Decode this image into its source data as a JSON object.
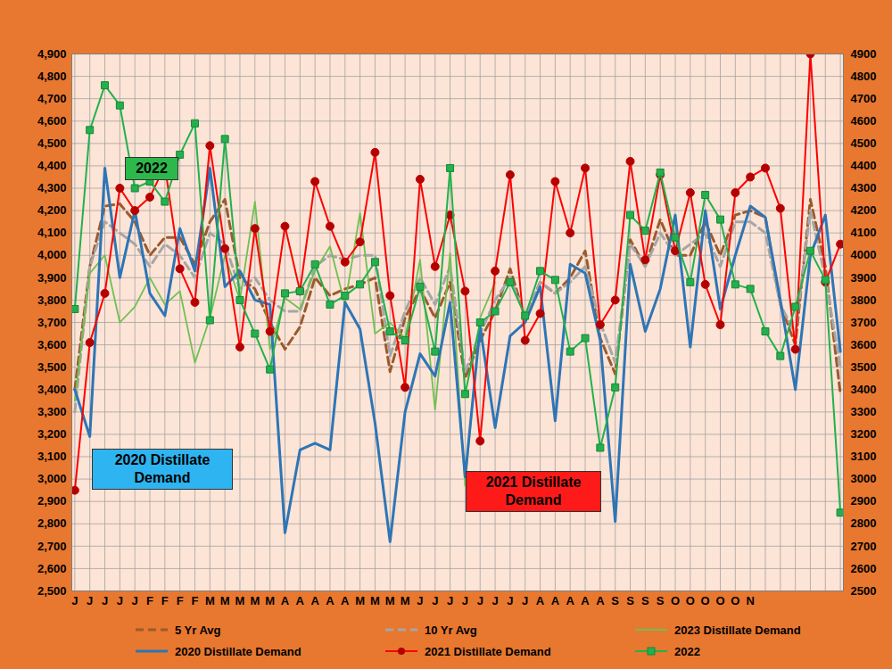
{
  "chart_data": {
    "type": "line",
    "categories": [
      "J",
      "J",
      "J",
      "J",
      "J",
      "F",
      "F",
      "F",
      "F",
      "M",
      "M",
      "M",
      "M",
      "M",
      "A",
      "A",
      "A",
      "A",
      "A",
      "M",
      "M",
      "M",
      "M",
      "J",
      "J",
      "J",
      "J",
      "J",
      "J",
      "J",
      "J",
      "A",
      "A",
      "A",
      "A",
      "A",
      "S",
      "S",
      "S",
      "S",
      "O",
      "O",
      "O",
      "O",
      "O",
      "N",
      null,
      null,
      null,
      null,
      null,
      null
    ],
    "ylim": [
      2500,
      4900
    ],
    "yticks": [
      {
        "value": 2500,
        "label": "2,500"
      },
      {
        "value": 2600,
        "label": "2,600"
      },
      {
        "value": 2700,
        "label": "2,700"
      },
      {
        "value": 2800,
        "label": "2,800"
      },
      {
        "value": 2900,
        "label": "2,900"
      },
      {
        "value": 3000,
        "label": "3,000"
      },
      {
        "value": 3100,
        "label": "3,100"
      },
      {
        "value": 3200,
        "label": "3,200"
      },
      {
        "value": 3300,
        "label": "3,300"
      },
      {
        "value": 3400,
        "label": "3,400"
      },
      {
        "value": 3500,
        "label": "3,500"
      },
      {
        "value": 3600,
        "label": "3,600"
      },
      {
        "value": 3700,
        "label": "3,700"
      },
      {
        "value": 3800,
        "label": "3,800"
      },
      {
        "value": 3900,
        "label": "3,900"
      },
      {
        "value": 4000,
        "label": "4,000"
      },
      {
        "value": 4100,
        "label": "4,100"
      },
      {
        "value": 4200,
        "label": "4,200"
      },
      {
        "value": 4300,
        "label": "4,300"
      },
      {
        "value": 4400,
        "label": "4,400"
      },
      {
        "value": 4500,
        "label": "4,500"
      },
      {
        "value": 4600,
        "label": "4,600"
      },
      {
        "value": 4700,
        "label": "4,700"
      },
      {
        "value": 4800,
        "label": "4,800"
      },
      {
        "value": 4900,
        "label": "4,900"
      }
    ],
    "y2lim": [
      2500,
      4900
    ],
    "y2ticks": [
      2500,
      2600,
      2700,
      2800,
      2900,
      3000,
      3100,
      3200,
      3300,
      3400,
      3500,
      3600,
      3700,
      3800,
      3900,
      4000,
      4100,
      4200,
      4300,
      4400,
      4500,
      4600,
      4700,
      4800,
      4900
    ],
    "grid": true,
    "legend": "bottom",
    "annotations": [
      "2022",
      "2020 Distillate Demand",
      "2021 Distillate Demand"
    ],
    "series": [
      {
        "name": "5 Yr Avg",
        "color": "#9C5A2C",
        "line_style": "dashed",
        "values": [
          3400,
          3950,
          4220,
          4230,
          4150,
          4000,
          4080,
          4080,
          3960,
          4150,
          4250,
          3900,
          3850,
          3700,
          3580,
          3680,
          3900,
          3820,
          3850,
          3870,
          3900,
          3480,
          3720,
          3850,
          3720,
          3880,
          3450,
          3620,
          3750,
          3940,
          3720,
          3880,
          3830,
          3900,
          4020,
          3630,
          3470,
          4070,
          3950,
          4160,
          4000,
          4000,
          4150,
          4000,
          4180,
          4200,
          4170,
          3780,
          3600,
          4250,
          3950,
          3380
        ]
      },
      {
        "name": "10 Yr Avg",
        "color": "#A6A6A6",
        "line_style": "dashed",
        "values": [
          3300,
          3950,
          4150,
          4100,
          4050,
          3950,
          4050,
          4000,
          3900,
          4100,
          4050,
          3850,
          3900,
          3800,
          3750,
          3750,
          3950,
          4000,
          3980,
          4000,
          4000,
          3550,
          3750,
          3900,
          3780,
          3950,
          3480,
          3650,
          3800,
          3900,
          3730,
          3880,
          3830,
          3880,
          3950,
          3700,
          3520,
          4050,
          3950,
          4100,
          4000,
          4050,
          4100,
          3950,
          4150,
          4150,
          4100,
          3780,
          3650,
          4200,
          3900,
          3500
        ]
      },
      {
        "name": "2023 Distillate Demand",
        "color": "#70C050",
        "line_style": "solid",
        "values": [
          3350,
          3920,
          4000,
          3700,
          3770,
          3900,
          3780,
          3840,
          3520,
          3720,
          4000,
          3800,
          4240,
          3580,
          3810,
          3760,
          3930,
          4040,
          3780,
          4190,
          3650,
          3700,
          3630,
          3980,
          3310,
          4010,
          2970,
          3720,
          3880,
          null,
          null,
          null,
          null,
          null,
          null,
          null,
          null,
          null,
          null,
          null,
          null,
          null,
          null,
          null,
          null,
          null,
          null,
          null,
          null,
          null,
          null,
          null
        ]
      },
      {
        "name": "2020 Distillate Demand",
        "color": "#2E75B6",
        "line_style": "solid",
        "values": [
          3400,
          3190,
          4390,
          3900,
          4200,
          3830,
          3730,
          4120,
          3930,
          4390,
          3860,
          3930,
          3800,
          3780,
          2760,
          3130,
          3160,
          3130,
          3790,
          3670,
          3250,
          2720,
          3300,
          3560,
          3460,
          3790,
          3010,
          3680,
          3230,
          3640,
          3700,
          3860,
          3260,
          3960,
          3920,
          3620,
          2810,
          3960,
          3660,
          3850,
          4180,
          3590,
          4200,
          3760,
          4000,
          4220,
          4170,
          3800,
          3400,
          4000,
          4180,
          3570
        ]
      },
      {
        "name": "2021 Distillate Demand",
        "color": "#FF0000",
        "line_style": "solid",
        "marker": "circle",
        "values": [
          2950,
          3610,
          3830,
          4300,
          4200,
          4260,
          4400,
          3940,
          3790,
          4490,
          4030,
          3590,
          4120,
          3660,
          4130,
          3840,
          4330,
          4130,
          3970,
          4060,
          4460,
          3820,
          3410,
          4340,
          3950,
          4180,
          3840,
          3170,
          3930,
          4360,
          3620,
          3740,
          4330,
          4100,
          4390,
          3690,
          3800,
          4420,
          3980,
          4360,
          4020,
          4280,
          3870,
          3690,
          4280,
          4350,
          4390,
          4210,
          3580,
          4900,
          3880,
          4050
        ]
      },
      {
        "name": "2022",
        "color": "#22B14C",
        "line_style": "solid",
        "marker": "square",
        "values": [
          3760,
          4560,
          4760,
          4670,
          4300,
          4330,
          4240,
          4450,
          4590,
          3710,
          4520,
          3800,
          3650,
          3490,
          3830,
          3840,
          3960,
          3780,
          3820,
          3870,
          3970,
          3660,
          3620,
          3860,
          3570,
          4390,
          3380,
          3700,
          3750,
          3880,
          3730,
          3930,
          3890,
          3570,
          3630,
          3140,
          3410,
          4180,
          4110,
          4370,
          4080,
          3880,
          4270,
          4160,
          3870,
          3850,
          3660,
          3550,
          3770,
          4020,
          3890,
          2850
        ]
      }
    ]
  }
}
